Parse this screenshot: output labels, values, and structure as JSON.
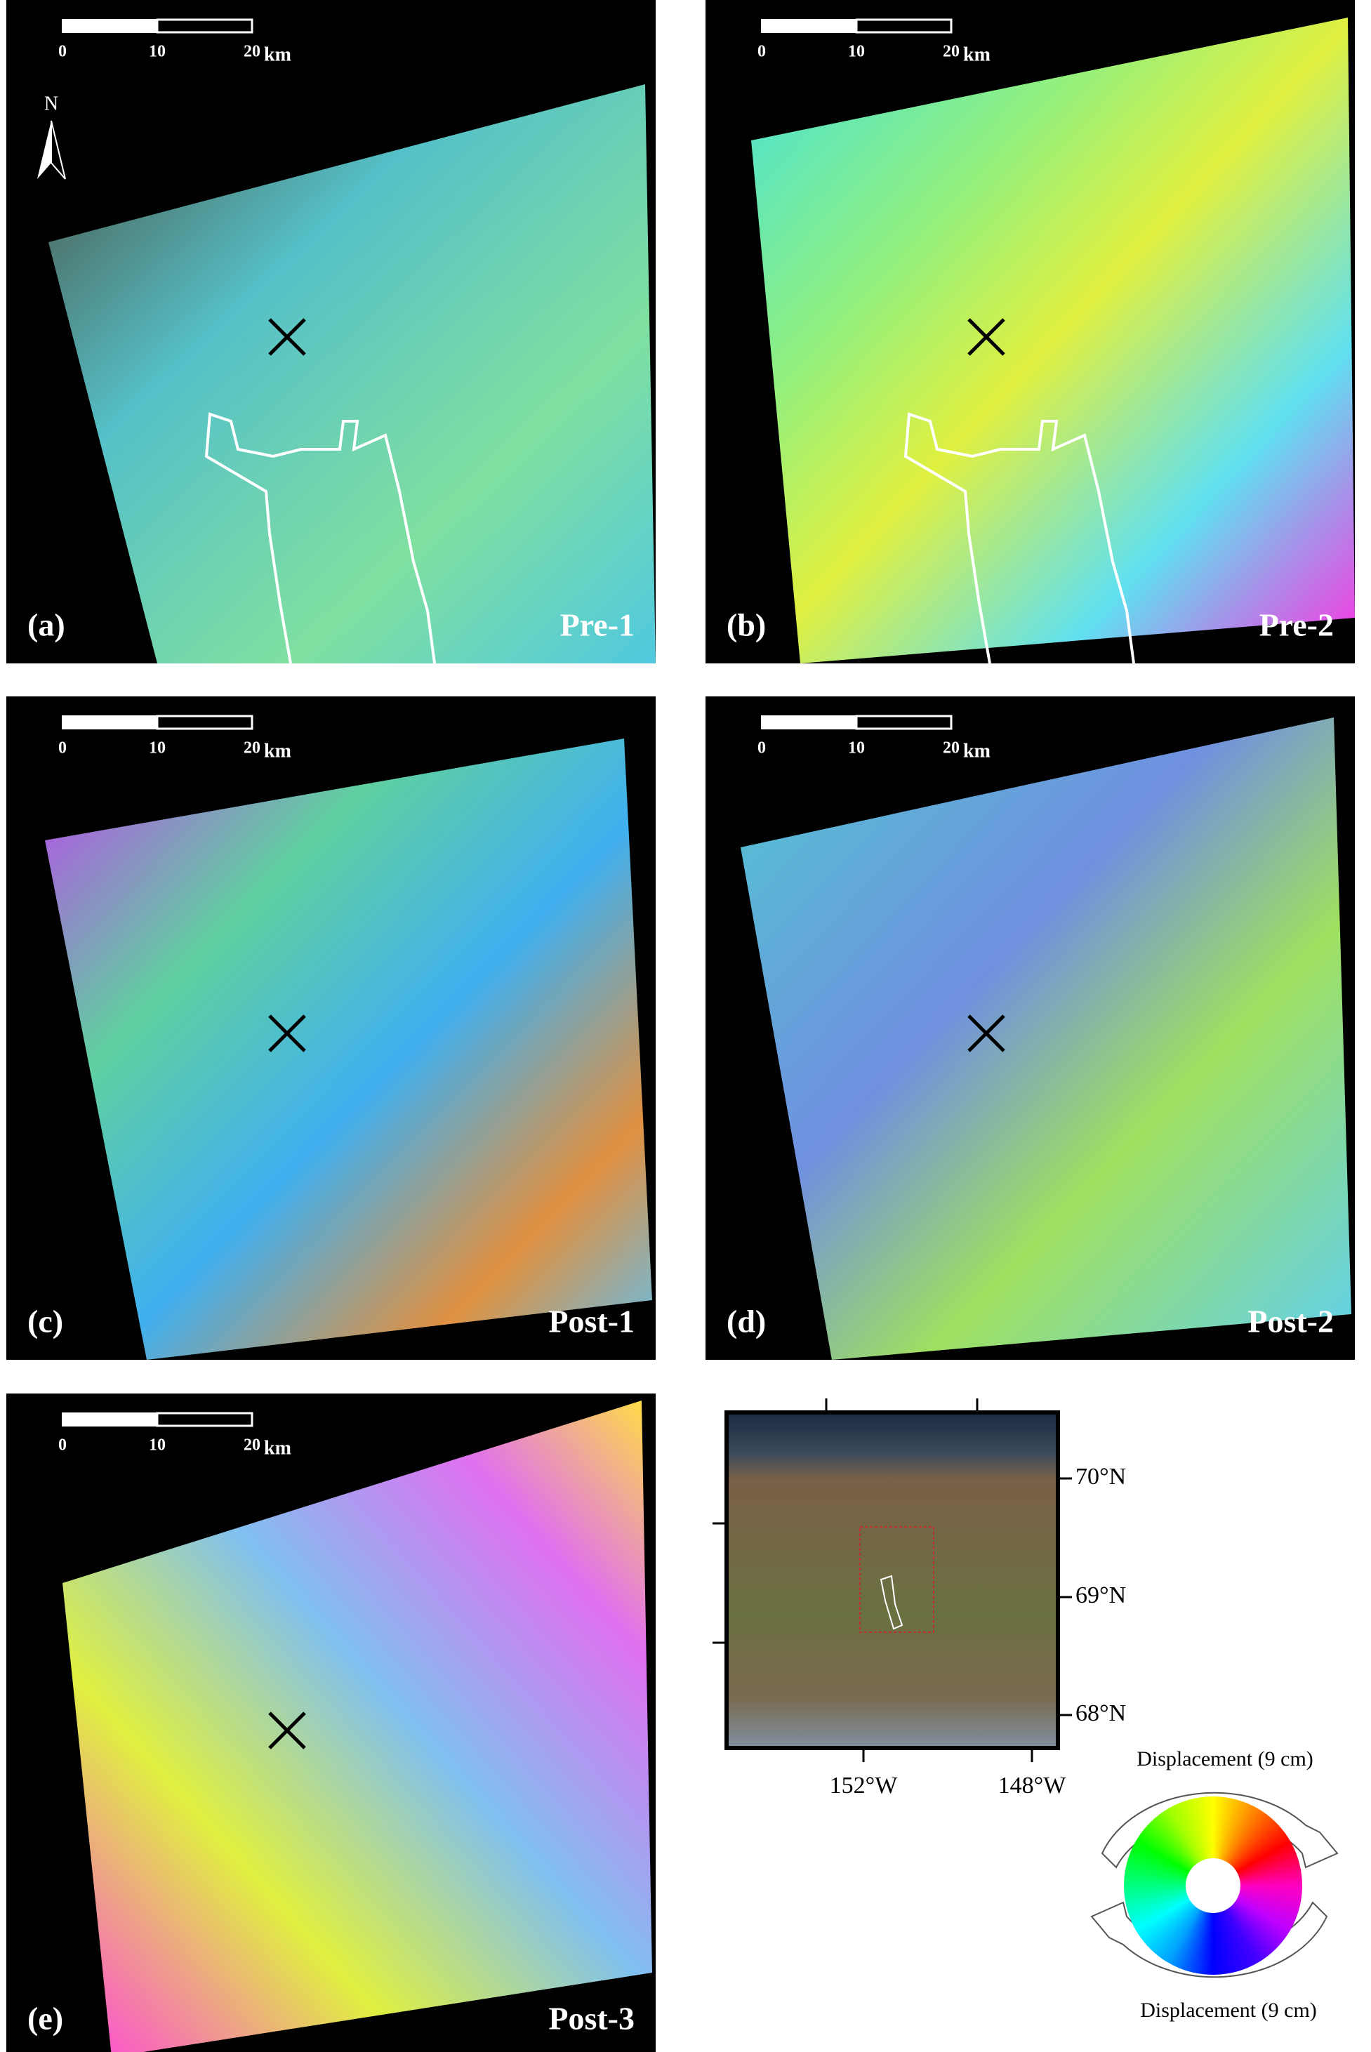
{
  "panels": [
    {
      "label": "(a)",
      "name": "Pre-1",
      "scale": [
        "0",
        "10",
        "20",
        "km"
      ]
    },
    {
      "label": "(b)",
      "name": "Pre-2",
      "scale": [
        "0",
        "10",
        "20",
        "km"
      ]
    },
    {
      "label": "(c)",
      "name": "Post-1",
      "scale": [
        "0",
        "10",
        "20",
        "km"
      ]
    },
    {
      "label": "(d)",
      "name": "Post-2",
      "scale": [
        "0",
        "10",
        "20",
        "km"
      ]
    },
    {
      "label": "(e)",
      "name": "Post-3",
      "scale": [
        "0",
        "10",
        "20",
        "km"
      ]
    }
  ],
  "north": "N",
  "inset": {
    "lat_labels": [
      "70°N",
      "69°N",
      "68°N"
    ],
    "lon_labels": [
      "152°W",
      "148°W"
    ]
  },
  "legend": {
    "top": "Displacement (9 cm)",
    "bottom": "Displacement (9 cm)"
  }
}
